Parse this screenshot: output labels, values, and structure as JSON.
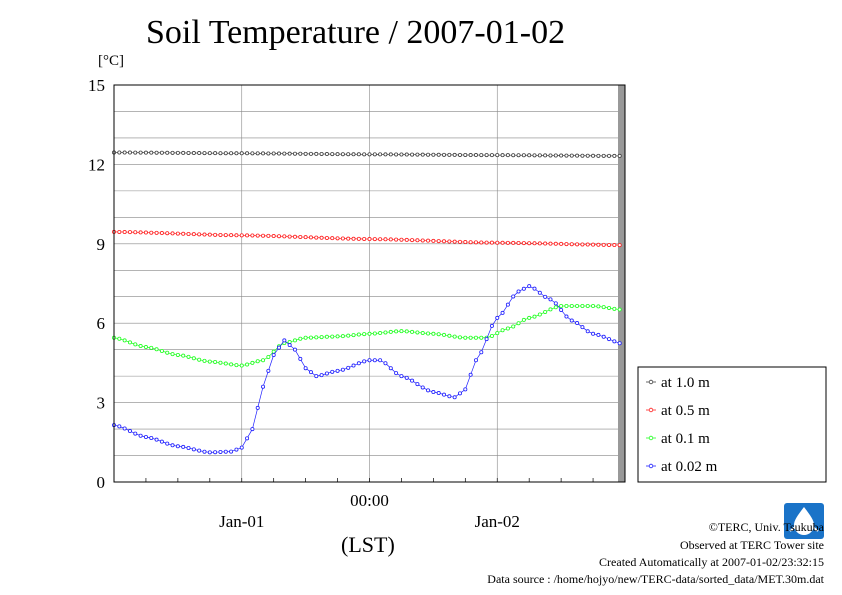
{
  "chart_data": {
    "type": "line",
    "title": "Soil Temperature / 2007-01-02",
    "ylabel": "[°C]",
    "xlabel": "(LST)",
    "ylim": [
      0,
      15
    ],
    "yticks": [
      "0",
      "3",
      "6",
      "9",
      "12",
      "15"
    ],
    "xtick_labels": [
      {
        "label": "Jan-01",
        "hour": -12
      },
      {
        "label": "00:00",
        "hour": 0
      },
      {
        "label": "Jan-02",
        "hour": 12
      }
    ],
    "xlim_hours": [
      -24,
      24
    ],
    "grid": true,
    "legend_position": "right",
    "series": [
      {
        "name": "at 1.0 m",
        "color": "#404040",
        "points": [
          [
            -24,
            12.45
          ],
          [
            -12,
            12.42
          ],
          [
            0,
            12.38
          ],
          [
            12,
            12.35
          ],
          [
            24,
            12.32
          ]
        ]
      },
      {
        "name": "at 0.5 m",
        "color": "#ff2020",
        "points": [
          [
            -24,
            9.45
          ],
          [
            -12,
            9.32
          ],
          [
            0,
            9.18
          ],
          [
            12,
            9.04
          ],
          [
            24,
            8.95
          ]
        ]
      },
      {
        "name": "at 0.1 m",
        "color": "#20ff20",
        "points": [
          [
            -24,
            5.45
          ],
          [
            -21,
            5.1
          ],
          [
            -18,
            4.8
          ],
          [
            -15,
            4.55
          ],
          [
            -12,
            4.4
          ],
          [
            -10,
            4.6
          ],
          [
            -8,
            5.25
          ],
          [
            -6,
            5.45
          ],
          [
            -3,
            5.5
          ],
          [
            0,
            5.6
          ],
          [
            3,
            5.7
          ],
          [
            6,
            5.6
          ],
          [
            9,
            5.45
          ],
          [
            11,
            5.45
          ],
          [
            13,
            5.8
          ],
          [
            15,
            6.2
          ],
          [
            18,
            6.65
          ],
          [
            21,
            6.65
          ],
          [
            24,
            6.5
          ]
        ]
      },
      {
        "name": "at 0.02 m",
        "color": "#2020ff",
        "points": [
          [
            -24,
            2.15
          ],
          [
            -21,
            1.7
          ],
          [
            -18,
            1.35
          ],
          [
            -15,
            1.12
          ],
          [
            -13,
            1.15
          ],
          [
            -12,
            1.3
          ],
          [
            -11,
            2.0
          ],
          [
            -10,
            3.6
          ],
          [
            -9,
            4.8
          ],
          [
            -8,
            5.35
          ],
          [
            -7,
            5.0
          ],
          [
            -6,
            4.3
          ],
          [
            -5,
            4.0
          ],
          [
            -3,
            4.2
          ],
          [
            0,
            4.6
          ],
          [
            1,
            4.6
          ],
          [
            3,
            4.0
          ],
          [
            6,
            3.4
          ],
          [
            8,
            3.2
          ],
          [
            9,
            3.5
          ],
          [
            10,
            4.6
          ],
          [
            12,
            6.2
          ],
          [
            14,
            7.2
          ],
          [
            15,
            7.4
          ],
          [
            17,
            6.9
          ],
          [
            19,
            6.1
          ],
          [
            21,
            5.6
          ],
          [
            24,
            5.2
          ]
        ]
      }
    ]
  },
  "footer": {
    "copyright": "©TERC, Univ. Tsukuba",
    "observed": "Observed at TERC Tower site",
    "created": "Created Automatically at 2007-01-02/23:32:15",
    "source": "Data source : /home/hojyo/new/TERC-data/sorted_data/MET.30m.dat"
  }
}
